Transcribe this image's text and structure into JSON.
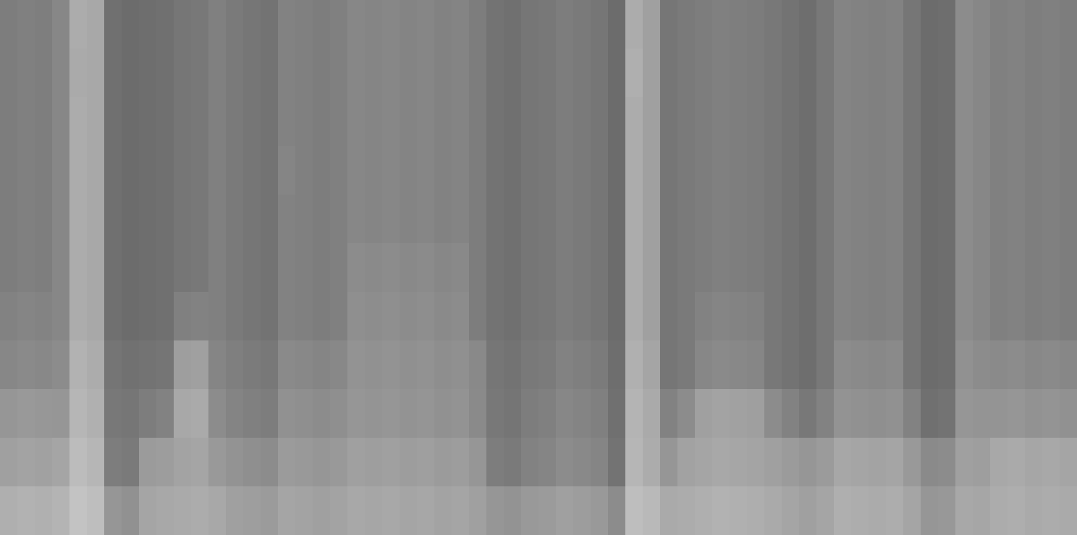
{
  "chart_data": {
    "type": "heatmap",
    "tick_labels": false,
    "zlim": [
      0,
      255
    ],
    "cells": [
      [
        125,
        128,
        126,
        135,
        172,
        168,
        112,
        108,
        110,
        112,
        118,
        120,
        128,
        122,
        118,
        115,
        130,
        128,
        125,
        128,
        135,
        133,
        135,
        132,
        134,
        130,
        132,
        125,
        115,
        112,
        118,
        120,
        125,
        122,
        118,
        108,
        172,
        160,
        118,
        122,
        125,
        128,
        126,
        124,
        120,
        115,
        110,
        120,
        132,
        130,
        128,
        130,
        118,
        108,
        110,
        140,
        135,
        128,
        130,
        126,
        128,
        125
      ],
      [
        125,
        128,
        126,
        135,
        170,
        168,
        112,
        108,
        110,
        112,
        118,
        120,
        128,
        122,
        118,
        115,
        130,
        128,
        125,
        128,
        135,
        133,
        135,
        132,
        134,
        130,
        132,
        125,
        115,
        112,
        118,
        120,
        125,
        122,
        118,
        108,
        175,
        160,
        118,
        122,
        125,
        128,
        126,
        124,
        120,
        115,
        110,
        120,
        132,
        130,
        128,
        130,
        118,
        108,
        110,
        140,
        135,
        128,
        130,
        126,
        128,
        125
      ],
      [
        125,
        128,
        126,
        135,
        172,
        168,
        112,
        108,
        110,
        112,
        118,
        120,
        128,
        122,
        118,
        115,
        130,
        128,
        125,
        128,
        135,
        133,
        135,
        132,
        134,
        130,
        132,
        125,
        115,
        112,
        118,
        120,
        125,
        122,
        118,
        108,
        172,
        160,
        118,
        122,
        125,
        128,
        126,
        124,
        120,
        115,
        110,
        120,
        132,
        130,
        128,
        130,
        118,
        108,
        110,
        140,
        135,
        128,
        130,
        126,
        128,
        125
      ],
      [
        125,
        128,
        126,
        135,
        172,
        168,
        112,
        108,
        110,
        112,
        118,
        120,
        128,
        122,
        118,
        115,
        133,
        128,
        125,
        128,
        135,
        133,
        135,
        132,
        134,
        130,
        132,
        125,
        115,
        112,
        118,
        120,
        125,
        122,
        118,
        108,
        172,
        160,
        118,
        122,
        125,
        128,
        126,
        124,
        120,
        115,
        110,
        120,
        132,
        130,
        128,
        130,
        118,
        108,
        110,
        140,
        135,
        128,
        130,
        126,
        128,
        125
      ],
      [
        125,
        128,
        126,
        135,
        172,
        168,
        112,
        108,
        110,
        112,
        118,
        120,
        128,
        122,
        118,
        115,
        130,
        128,
        125,
        128,
        135,
        133,
        135,
        132,
        134,
        130,
        132,
        125,
        115,
        112,
        118,
        120,
        125,
        122,
        118,
        108,
        172,
        160,
        118,
        122,
        125,
        128,
        126,
        124,
        120,
        115,
        110,
        120,
        132,
        130,
        128,
        130,
        118,
        108,
        110,
        140,
        135,
        128,
        130,
        126,
        128,
        125
      ],
      [
        125,
        128,
        126,
        135,
        172,
        168,
        112,
        108,
        110,
        112,
        118,
        120,
        128,
        122,
        118,
        115,
        130,
        128,
        125,
        128,
        140,
        138,
        140,
        137,
        139,
        135,
        137,
        125,
        115,
        112,
        118,
        120,
        125,
        122,
        118,
        108,
        172,
        160,
        118,
        122,
        125,
        128,
        126,
        124,
        120,
        115,
        110,
        120,
        132,
        130,
        128,
        130,
        118,
        108,
        110,
        140,
        135,
        128,
        130,
        126,
        128,
        125
      ],
      [
        130,
        133,
        131,
        135,
        172,
        168,
        112,
        108,
        110,
        112,
        128,
        130,
        128,
        122,
        118,
        115,
        130,
        128,
        125,
        128,
        143,
        141,
        143,
        140,
        142,
        138,
        140,
        125,
        115,
        112,
        118,
        120,
        125,
        122,
        118,
        108,
        172,
        160,
        118,
        122,
        130,
        133,
        131,
        129,
        120,
        115,
        110,
        120,
        132,
        130,
        128,
        130,
        118,
        108,
        110,
        140,
        135,
        128,
        130,
        126,
        128,
        125
      ],
      [
        135,
        138,
        136,
        140,
        178,
        172,
        117,
        113,
        115,
        117,
        158,
        160,
        133,
        127,
        123,
        120,
        138,
        136,
        133,
        136,
        147,
        145,
        147,
        144,
        146,
        142,
        144,
        137,
        118,
        115,
        121,
        123,
        130,
        127,
        123,
        110,
        176,
        165,
        118,
        122,
        135,
        138,
        136,
        134,
        120,
        115,
        110,
        120,
        140,
        138,
        136,
        138,
        118,
        108,
        110,
        145,
        140,
        138,
        140,
        136,
        138,
        135
      ],
      [
        150,
        153,
        151,
        150,
        182,
        176,
        120,
        118,
        125,
        130,
        168,
        170,
        140,
        132,
        128,
        125,
        145,
        143,
        140,
        143,
        150,
        148,
        150,
        147,
        149,
        145,
        147,
        138,
        120,
        117,
        125,
        128,
        135,
        132,
        128,
        112,
        180,
        170,
        130,
        140,
        160,
        163,
        161,
        159,
        140,
        130,
        120,
        130,
        147,
        145,
        143,
        145,
        130,
        112,
        115,
        150,
        148,
        148,
        150,
        146,
        148,
        145
      ],
      [
        160,
        163,
        161,
        165,
        188,
        182,
        125,
        122,
        155,
        157,
        163,
        165,
        153,
        147,
        143,
        140,
        155,
        153,
        150,
        153,
        160,
        158,
        160,
        157,
        159,
        155,
        157,
        150,
        125,
        122,
        130,
        133,
        140,
        137,
        133,
        115,
        182,
        172,
        150,
        162,
        165,
        168,
        166,
        164,
        160,
        155,
        150,
        155,
        167,
        165,
        163,
        165,
        153,
        138,
        140,
        160,
        158,
        168,
        170,
        166,
        168,
        165
      ],
      [
        175,
        178,
        176,
        180,
        195,
        190,
        150,
        145,
        165,
        168,
        170,
        172,
        168,
        160,
        158,
        155,
        165,
        163,
        160,
        163,
        168,
        166,
        168,
        165,
        167,
        163,
        165,
        160,
        150,
        147,
        153,
        155,
        160,
        157,
        153,
        140,
        190,
        185,
        170,
        172,
        175,
        178,
        176,
        174,
        170,
        165,
        160,
        165,
        175,
        173,
        171,
        173,
        165,
        150,
        152,
        168,
        166,
        172,
        174,
        170,
        172,
        170
      ]
    ]
  }
}
